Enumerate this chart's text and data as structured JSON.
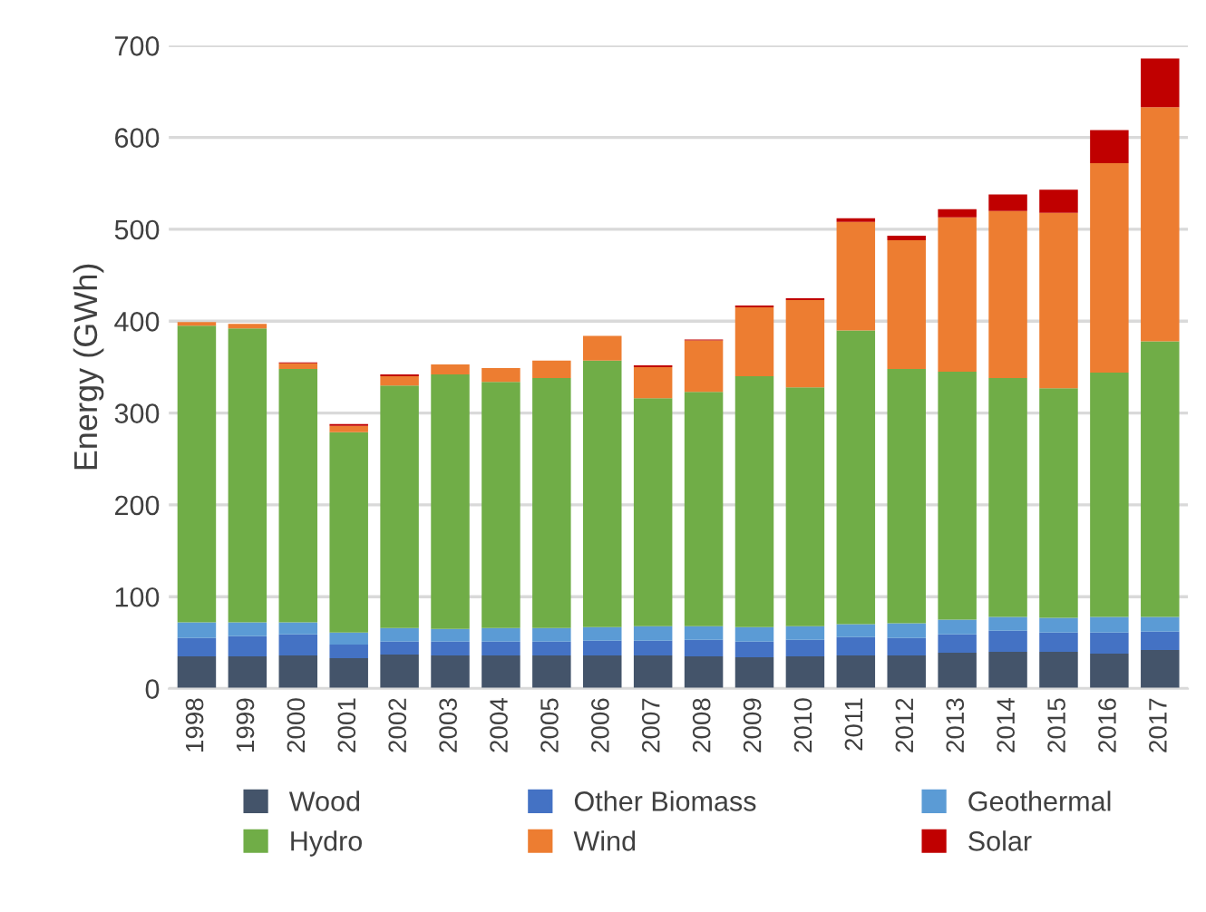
{
  "chart_data": {
    "type": "bar",
    "stacked": true,
    "ylabel": "Energy (GWh)",
    "categories": [
      "1998",
      "1999",
      "2000",
      "2001",
      "2002",
      "2003",
      "2004",
      "2005",
      "2006",
      "2007",
      "2008",
      "2009",
      "2010",
      "2011",
      "2012",
      "2013",
      "2014",
      "2015",
      "2016",
      "2017"
    ],
    "series": [
      {
        "name": "Wood",
        "color": "#44546a",
        "values": [
          35,
          35,
          36,
          33,
          37,
          36,
          36,
          36,
          36,
          36,
          35,
          34,
          35,
          36,
          36,
          39,
          40,
          40,
          38,
          42
        ]
      },
      {
        "name": "Other Biomass",
        "color": "#4472c4",
        "values": [
          20,
          22,
          23,
          15,
          14,
          15,
          15,
          15,
          16,
          16,
          18,
          17,
          18,
          20,
          19,
          20,
          23,
          21,
          23,
          20
        ]
      },
      {
        "name": "Geothermal",
        "color": "#5b9bd5",
        "values": [
          17,
          15,
          13,
          13,
          15,
          14,
          15,
          15,
          15,
          16,
          15,
          16,
          15,
          14,
          16,
          16,
          15,
          16,
          17,
          16
        ]
      },
      {
        "name": "Hydro",
        "color": "#70ad47",
        "values": [
          323,
          320,
          276,
          218,
          264,
          277,
          268,
          272,
          290,
          248,
          255,
          273,
          260,
          320,
          277,
          270,
          260,
          250,
          266,
          300
        ]
      },
      {
        "name": "Wind",
        "color": "#ed7d31",
        "values": [
          4,
          5,
          6,
          7,
          10,
          11,
          15,
          19,
          27,
          34,
          56,
          75,
          95,
          118,
          140,
          168,
          182,
          191,
          228,
          255
        ]
      },
      {
        "name": "Solar",
        "color": "#c00000",
        "values": [
          null,
          null,
          1,
          2,
          2,
          null,
          null,
          null,
          null,
          2,
          1,
          2,
          2,
          4,
          5,
          9,
          18,
          25,
          36,
          53
        ]
      }
    ],
    "ylim": [
      0,
      700
    ],
    "yticks": [
      0,
      100,
      200,
      300,
      400,
      500,
      600,
      700
    ],
    "grid": "y",
    "legend": "bottom"
  }
}
